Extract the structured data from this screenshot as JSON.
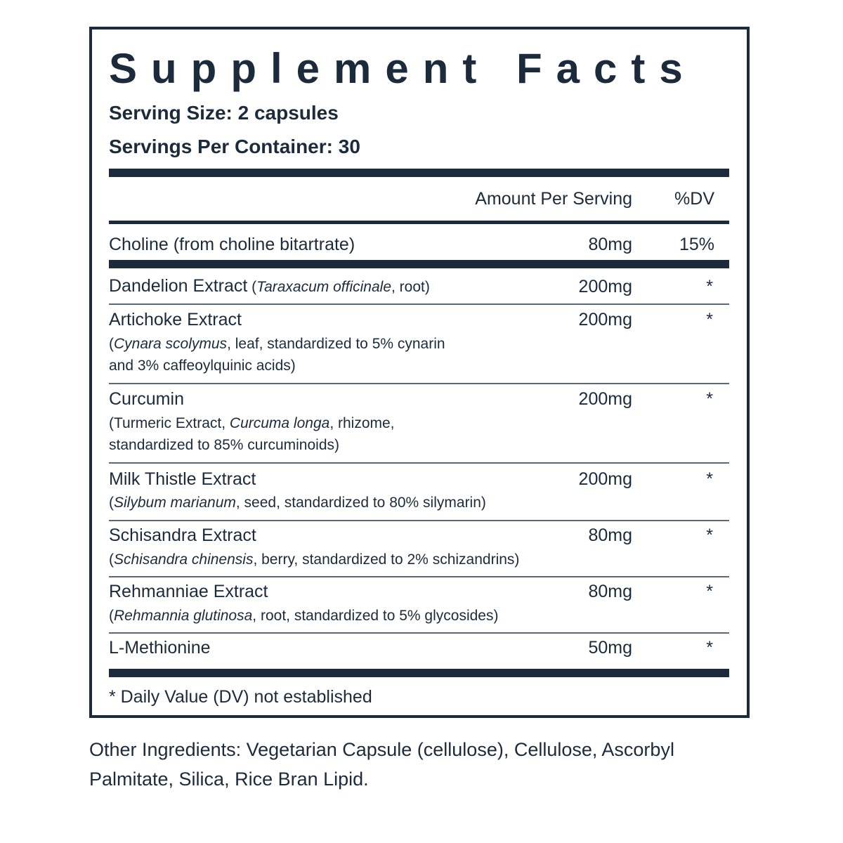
{
  "header": {
    "title": "Supplement Facts",
    "serving_size": "Serving Size: 2 capsules",
    "servings_per_container": "Servings Per Container: 30"
  },
  "table": {
    "columns": [
      "Amount Per Serving",
      "%DV"
    ],
    "rows": [
      {
        "name": "Choline (from choline bitartrate)",
        "amount": "80mg",
        "dv": "15%"
      },
      {
        "name": "Dandelion Extract",
        "detail": [
          {
            "pre": "(",
            "latin": "Taraxacum officinale",
            "post": ", root)"
          }
        ],
        "amount": "200mg",
        "dv": "*"
      },
      {
        "name": "Artichoke Extract",
        "detail": [
          {
            "pre": "(",
            "latin": "Cynara scolymus",
            "post": ", leaf, standardized to 5% cynarin"
          },
          {
            "pre": "and 3% caffeoylquinic acids)"
          }
        ],
        "amount": "200mg",
        "dv": "*"
      },
      {
        "name": "Curcumin",
        "detail": [
          {
            "pre": "(Turmeric Extract, ",
            "latin": "Curcuma longa",
            "post": ", rhizome,"
          },
          {
            "pre": "standardized to 85% curcuminoids)"
          }
        ],
        "amount": "200mg",
        "dv": "*"
      },
      {
        "name": "Milk Thistle Extract",
        "detail": [
          {
            "pre": "(",
            "latin": "Silybum marianum",
            "post": ", seed, standardized to 80% silymarin)"
          }
        ],
        "amount": "200mg",
        "dv": "*"
      },
      {
        "name": "Schisandra Extract",
        "detail": [
          {
            "pre": "(",
            "latin": "Schisandra chinensis",
            "post": ", berry, standardized to 2% schizandrins)"
          }
        ],
        "amount": "80mg",
        "dv": "*"
      },
      {
        "name": "Rehmanniae Extract",
        "detail": [
          {
            "pre": "(",
            "latin": "Rehmannia glutinosa",
            "post": ", root, standardized to 5% glycosides)"
          }
        ],
        "amount": "80mg",
        "dv": "*"
      },
      {
        "name": "L-Methionine",
        "amount": "50mg",
        "dv": "*"
      }
    ]
  },
  "footnote": "* Daily Value (DV) not established",
  "other_ingredients": "Other Ingredients: Vegetarian Capsule (cellulose), Cellulose, Ascorbyl Palmitate, Silica, Rice Bran Lipid."
}
